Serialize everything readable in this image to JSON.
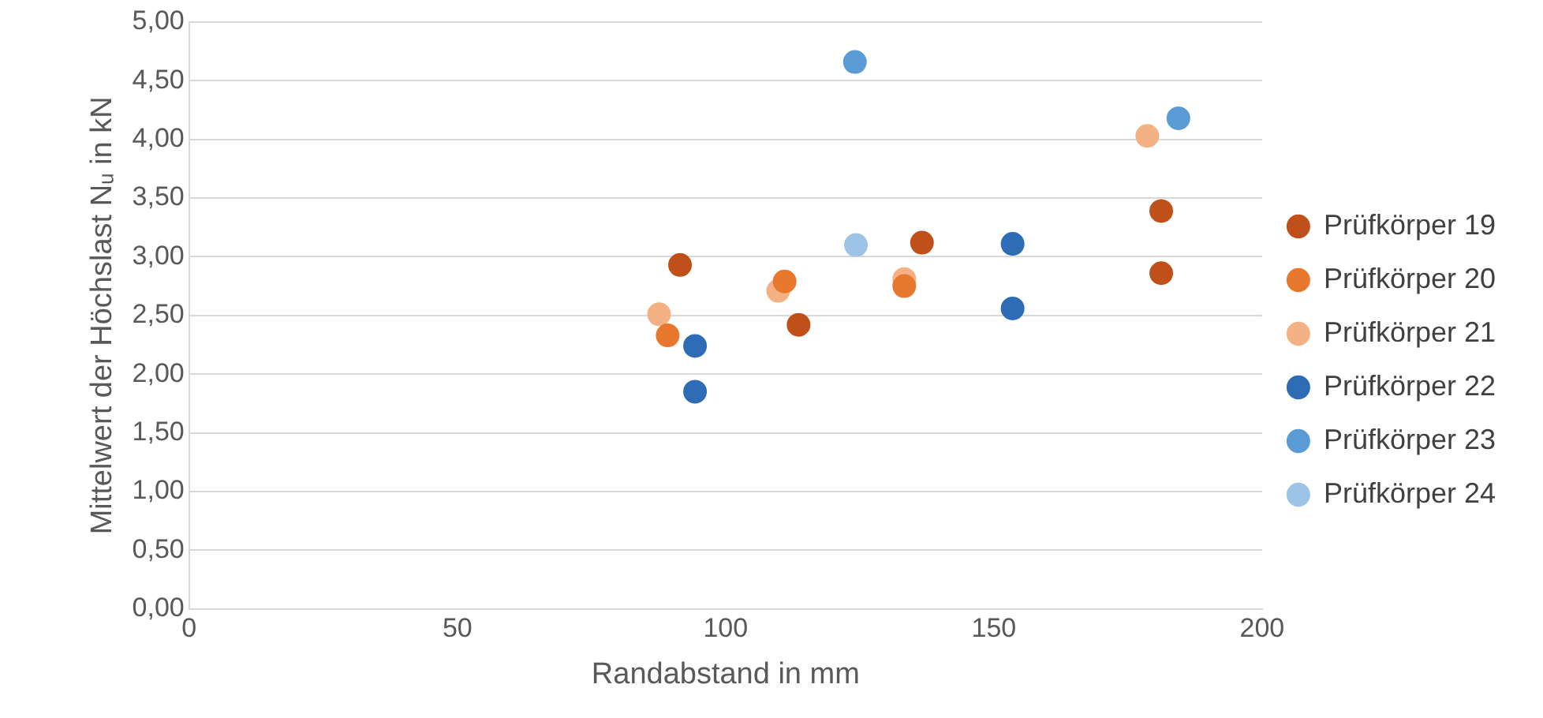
{
  "chart_data": {
    "type": "scatter",
    "xlabel": "Randabstand in mm",
    "ylabel": "Mittelwert der Höchslast Nᵤ in kN",
    "xlim": [
      0,
      200
    ],
    "xticks": [
      0,
      50,
      100,
      150,
      200
    ],
    "ylim": [
      0,
      5
    ],
    "yticks": [
      {
        "value": 0,
        "label": "0,00"
      },
      {
        "value": 0.5,
        "label": "0,50"
      },
      {
        "value": 1,
        "label": "1,00"
      },
      {
        "value": 1.5,
        "label": "1,50"
      },
      {
        "value": 2,
        "label": "2,00"
      },
      {
        "value": 2.5,
        "label": "2,50"
      },
      {
        "value": 3,
        "label": "3,00"
      },
      {
        "value": 3.5,
        "label": "3,50"
      },
      {
        "value": 4,
        "label": "4,00"
      },
      {
        "value": 4.5,
        "label": "4,50"
      },
      {
        "value": 5,
        "label": "5,00"
      }
    ],
    "grid": "y",
    "legend": "right",
    "marker": "circle",
    "series": [
      {
        "name": "Prüfkörper 19",
        "color": "#c0501a",
        "x": [
          91.5,
          113.6,
          136.6,
          181.2,
          181.2
        ],
        "values": [
          2.93,
          2.42,
          3.12,
          3.39,
          2.86
        ]
      },
      {
        "name": "Prüfkörper 20",
        "color": "#e8782e",
        "x": [
          89.2,
          111,
          133.3
        ],
        "values": [
          2.33,
          2.79,
          2.75
        ]
      },
      {
        "name": "Prüfkörper 21",
        "color": "#f4b183",
        "x": [
          87.6,
          109.8,
          133.3,
          178.6
        ],
        "values": [
          2.51,
          2.71,
          2.81,
          4.03
        ]
      },
      {
        "name": "Prüfkörper 22",
        "color": "#2e6cb5",
        "x": [
          94.3,
          94.3,
          153.5,
          153.5
        ],
        "values": [
          2.24,
          1.85,
          3.11,
          2.56
        ]
      },
      {
        "name": "Prüfkörper 23",
        "color": "#5b9bd5",
        "x": [
          124.1,
          184.4
        ],
        "values": [
          4.66,
          4.18
        ]
      },
      {
        "name": "Prüfkörper 24",
        "color": "#9dc3e6",
        "x": [
          124.3
        ],
        "values": [
          3.1
        ]
      }
    ]
  }
}
